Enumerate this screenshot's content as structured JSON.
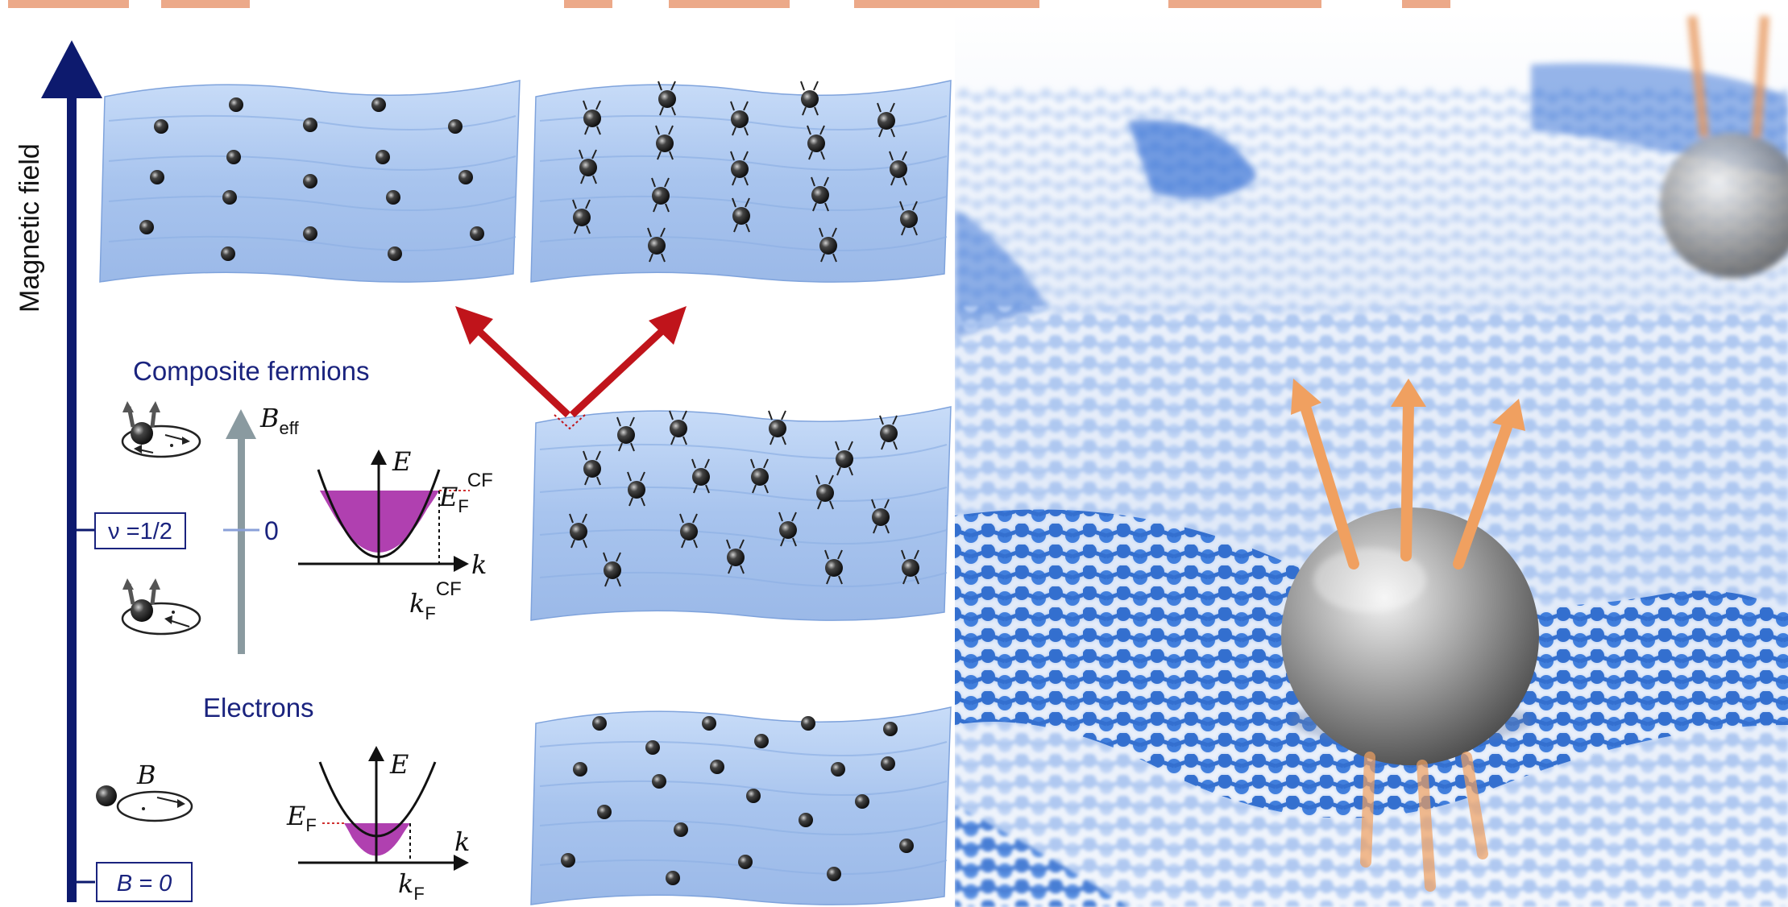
{
  "axis": {
    "label": "Magnetic field"
  },
  "sections": {
    "composite_fermions": "Composite fermions",
    "electrons": "Electrons"
  },
  "boxes": {
    "nu": "ν =1/2",
    "b_zero": "B = 0"
  },
  "cf_diagram": {
    "b_eff": "B",
    "b_eff_sub": "eff",
    "zero": "0",
    "energy": "E",
    "fermi_energy": "E",
    "fermi_energy_sub": "F",
    "fermi_energy_sup": "CF",
    "wavevector": "k",
    "fermi_k": "k",
    "fermi_k_sub": "F",
    "fermi_k_sup": "CF"
  },
  "electron_diagram": {
    "field": "B",
    "energy": "E",
    "fermi_energy": "E",
    "fermi_energy_sub": "F",
    "wavevector": "k",
    "fermi_k": "k",
    "fermi_k_sub": "F"
  },
  "colors": {
    "axis": "#0d1a6e",
    "sheet": "#aec8f0",
    "fill": "#b040b0",
    "arrow_red": "#c0141b",
    "text_blue": "#1a237e",
    "lattice": "#1e6fd6",
    "spin_arrow": "#f0a060"
  }
}
